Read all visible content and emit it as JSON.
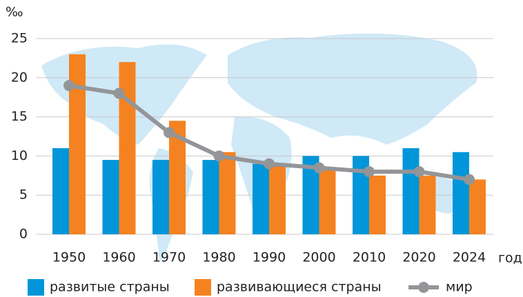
{
  "chart_data": {
    "type": "bar",
    "y_label": "‰",
    "x_label": "год",
    "categories": [
      "1950",
      "1960",
      "1970",
      "1980",
      "1990",
      "2000",
      "2010",
      "2020",
      "2024"
    ],
    "series": [
      {
        "name": "развитые страны",
        "type": "bar",
        "color": "#0096d9",
        "values": [
          11,
          9.5,
          9.5,
          9.5,
          9,
          10,
          10,
          11,
          10.5
        ]
      },
      {
        "name": "развивающиеся страны",
        "type": "bar",
        "color": "#f58220",
        "values": [
          23,
          22,
          14.5,
          10.5,
          9,
          8.5,
          7.5,
          7.5,
          7
        ]
      },
      {
        "name": "мир",
        "type": "line",
        "color": "#939598",
        "values": [
          19,
          18,
          13,
          10,
          9,
          8.5,
          8,
          8,
          7
        ]
      }
    ],
    "ylim": [
      0,
      25
    ],
    "yticks": [
      0,
      5,
      10,
      15,
      20,
      25
    ],
    "grid": true,
    "legend": "bottom"
  }
}
